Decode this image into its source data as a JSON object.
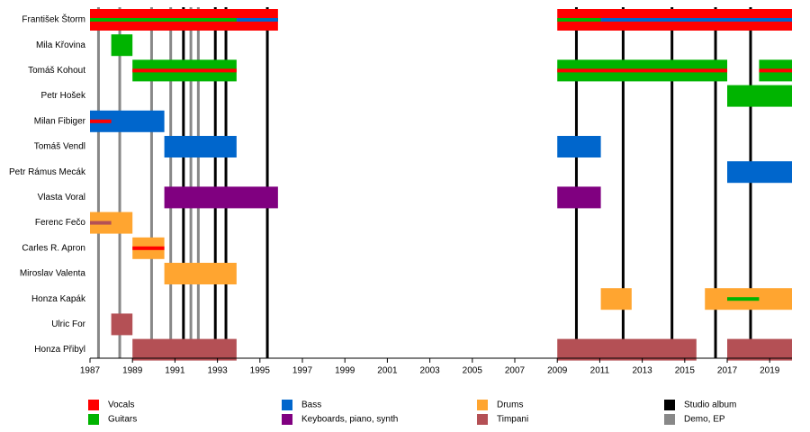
{
  "chart_data": {
    "type": "timeline",
    "categories": [
      "František Štorm",
      "Mila Křovina",
      "Tomáš Kohout",
      "Petr Hošek",
      "Milan Fibiger",
      "Tomáš Vendl",
      "Petr Rámus Mecák",
      "Vlasta Voral",
      "Ferenc Fečo",
      "Carles R. Apron",
      "Miroslav Valenta",
      "Honza Kapák",
      "Ulric For",
      "Honza Přibyl"
    ],
    "series": [
      {
        "name": "Vocals",
        "color": "#ff0000"
      },
      {
        "name": "Guitars",
        "color": "#00b400"
      },
      {
        "name": "Bass",
        "color": "#0066cc"
      },
      {
        "name": "Keyboards, piano, synth",
        "color": "#800080"
      },
      {
        "name": "Drums",
        "color": "#ffa530"
      },
      {
        "name": "Timpani",
        "color": "#b45055"
      }
    ],
    "events": [
      {
        "name": "Studio album",
        "color": "#000000",
        "x": [
          1991.4,
          1992.9,
          1993.4,
          1995.35,
          2009.9,
          2012.1,
          2014.4,
          2016.45,
          2018.1
        ]
      },
      {
        "name": "Demo, EP",
        "color": "#888888",
        "x": [
          1987.4,
          1988.4,
          1989.9,
          1990.8,
          1991.75,
          1992.1
        ]
      }
    ],
    "bars": [
      {
        "row": "František Štorm",
        "role": "Vocals",
        "start": 1987,
        "end": 1995.85,
        "style": "full"
      },
      {
        "row": "František Štorm",
        "role": "Vocals",
        "start": 2009,
        "end": 2020.05,
        "style": "full"
      },
      {
        "row": "František Štorm",
        "role": "Guitars",
        "start": 1987,
        "end": 1995.85,
        "style": "line"
      },
      {
        "row": "František Štorm",
        "role": "Guitars",
        "start": 2009,
        "end": 2020.05,
        "style": "line"
      },
      {
        "row": "František Štorm",
        "role": "Bass",
        "start": 1993.9,
        "end": 1995.85,
        "style": "line"
      },
      {
        "row": "František Štorm",
        "role": "Bass",
        "start": 2011.05,
        "end": 2020.05,
        "style": "line"
      },
      {
        "row": "Mila Křovina",
        "role": "Guitars",
        "start": 1988,
        "end": 1989,
        "style": "full"
      },
      {
        "row": "Tomáš Kohout",
        "role": "Guitars",
        "start": 1989,
        "end": 1993.9,
        "style": "full"
      },
      {
        "row": "Tomáš Kohout",
        "role": "Guitars",
        "start": 2009,
        "end": 2017,
        "style": "full"
      },
      {
        "row": "Tomáš Kohout",
        "role": "Guitars",
        "start": 2018.5,
        "end": 2020.05,
        "style": "full"
      },
      {
        "row": "Tomáš Kohout",
        "role": "Vocals",
        "start": 1989,
        "end": 1993.9,
        "style": "line"
      },
      {
        "row": "Tomáš Kohout",
        "role": "Vocals",
        "start": 2009,
        "end": 2017,
        "style": "line"
      },
      {
        "row": "Tomáš Kohout",
        "role": "Vocals",
        "start": 2018.5,
        "end": 2020.05,
        "style": "line"
      },
      {
        "row": "Petr Hošek",
        "role": "Guitars",
        "start": 2017,
        "end": 2020.05,
        "style": "full"
      },
      {
        "row": "Milan Fibiger",
        "role": "Bass",
        "start": 1987,
        "end": 1990.5,
        "style": "full"
      },
      {
        "row": "Milan Fibiger",
        "role": "Vocals",
        "start": 1987,
        "end": 1988,
        "style": "line"
      },
      {
        "row": "Tomáš Vendl",
        "role": "Bass",
        "start": 1990.5,
        "end": 1993.9,
        "style": "full"
      },
      {
        "row": "Tomáš Vendl",
        "role": "Bass",
        "start": 2009,
        "end": 2011.05,
        "style": "full"
      },
      {
        "row": "Petr Rámus Mecák",
        "role": "Bass",
        "start": 2017,
        "end": 2020.05,
        "style": "full"
      },
      {
        "row": "Vlasta Voral",
        "role": "Keyboards, piano, synth",
        "start": 1990.5,
        "end": 1995.85,
        "style": "full"
      },
      {
        "row": "Vlasta Voral",
        "role": "Keyboards, piano, synth",
        "start": 2009,
        "end": 2011.05,
        "style": "full"
      },
      {
        "row": "Ferenc Fečo",
        "role": "Drums",
        "start": 1987,
        "end": 1989,
        "style": "full"
      },
      {
        "row": "Ferenc Fečo",
        "role": "Timpani",
        "start": 1987,
        "end": 1988,
        "style": "line"
      },
      {
        "row": "Carles R. Apron",
        "role": "Drums",
        "start": 1989,
        "end": 1990.5,
        "style": "full"
      },
      {
        "row": "Carles R. Apron",
        "role": "Vocals",
        "start": 1989,
        "end": 1990.5,
        "style": "line"
      },
      {
        "row": "Miroslav Valenta",
        "role": "Drums",
        "start": 1990.5,
        "end": 1993.9,
        "style": "full"
      },
      {
        "row": "Honza Kapák",
        "role": "Drums",
        "start": 2011.05,
        "end": 2012.5,
        "style": "full"
      },
      {
        "row": "Honza Kapák",
        "role": "Drums",
        "start": 2015.95,
        "end": 2020.05,
        "style": "full"
      },
      {
        "row": "Honza Kapák",
        "role": "Guitars",
        "start": 2017,
        "end": 2018.5,
        "style": "line"
      },
      {
        "row": "Ulric For",
        "role": "Timpani",
        "start": 1988,
        "end": 1989,
        "style": "full"
      },
      {
        "row": "Honza Přibyl",
        "role": "Timpani",
        "start": 1989,
        "end": 1993.9,
        "style": "full"
      },
      {
        "row": "Honza Přibyl",
        "role": "Timpani",
        "start": 2009,
        "end": 2015.55,
        "style": "full"
      },
      {
        "row": "Honza Přibyl",
        "role": "Timpani",
        "start": 2017,
        "end": 2020.05,
        "style": "full"
      }
    ],
    "xlim": [
      1987,
      2020.05
    ],
    "xticks": [
      1987,
      1989,
      1991,
      1993,
      1995,
      1997,
      1999,
      2001,
      2003,
      2005,
      2007,
      2009,
      2011,
      2013,
      2015,
      2017,
      2019
    ]
  }
}
